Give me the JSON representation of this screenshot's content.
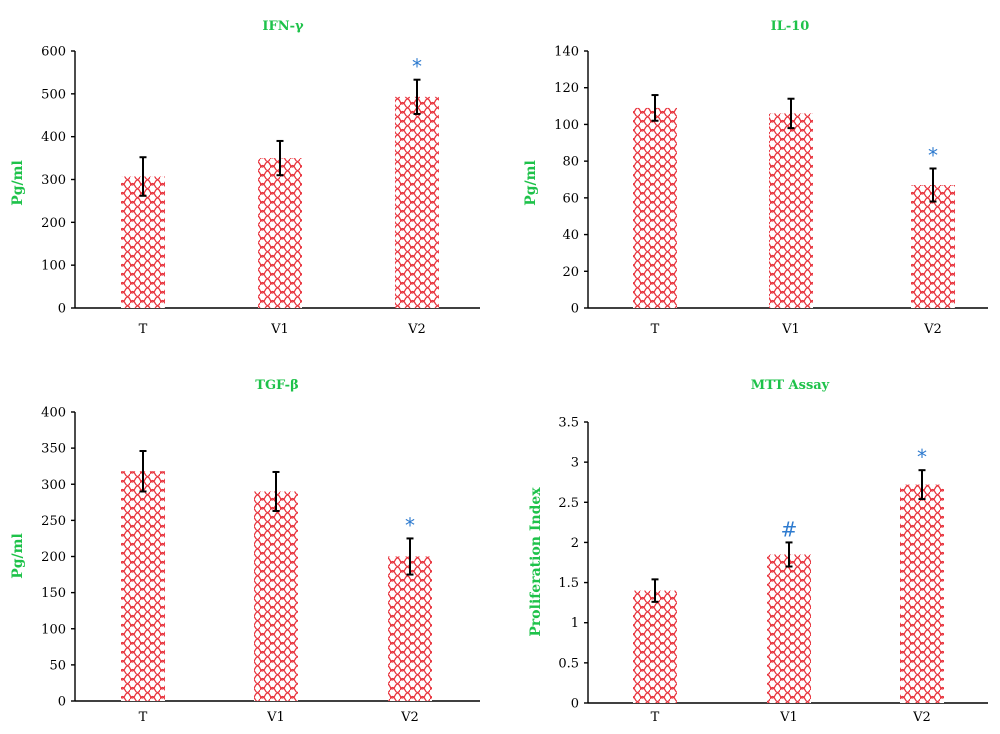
{
  "colors": {
    "title": "#1ec24a",
    "bar_pattern": "#e8323c",
    "significance": "#2e7bcf"
  },
  "chart_data": [
    {
      "type": "bar",
      "title": "IFN-γ",
      "ylabel": "Pg/ml",
      "categories": [
        "T",
        "V1",
        "V2"
      ],
      "values": [
        307,
        350,
        493
      ],
      "errors": [
        45,
        40,
        40
      ],
      "marks": [
        "",
        "",
        "*"
      ],
      "ylim": [
        0,
        600
      ],
      "yticks": [
        0,
        100,
        200,
        300,
        400,
        500,
        600
      ],
      "ytick_labels": [
        "0",
        "100",
        "200",
        "300",
        "400",
        "500",
        "600"
      ]
    },
    {
      "type": "bar",
      "title": "IL-10",
      "ylabel": "Pg/ml",
      "categories": [
        "T",
        "V1",
        "V2"
      ],
      "values": [
        109,
        106,
        67
      ],
      "errors": [
        7,
        8,
        9
      ],
      "marks": [
        "",
        "",
        "*"
      ],
      "ylim": [
        0,
        140
      ],
      "yticks": [
        0,
        20,
        40,
        60,
        80,
        100,
        120,
        140
      ],
      "ytick_labels": [
        "0",
        "20",
        "40",
        "60",
        "80",
        "100",
        "120",
        "140"
      ]
    },
    {
      "type": "bar",
      "title": "TGF-β",
      "ylabel": "Pg/ml",
      "categories": [
        "T",
        "V1",
        "V2"
      ],
      "values": [
        318,
        290,
        200
      ],
      "errors": [
        28,
        27,
        25
      ],
      "marks": [
        "",
        "",
        "*"
      ],
      "ylim": [
        0,
        400
      ],
      "yticks": [
        0,
        50,
        100,
        150,
        200,
        250,
        300,
        350,
        400
      ],
      "ytick_labels": [
        "0",
        "50",
        "100",
        "150",
        "200",
        "250",
        "300",
        "350",
        "400"
      ]
    },
    {
      "type": "bar",
      "title": "MTT Assay",
      "ylabel": "Proliferation Index",
      "categories": [
        "T",
        "V1",
        "V2"
      ],
      "values": [
        1.4,
        1.85,
        2.72
      ],
      "errors": [
        0.14,
        0.15,
        0.18
      ],
      "marks": [
        "",
        "#",
        "*"
      ],
      "ylim": [
        0,
        3.5
      ],
      "yticks": [
        0,
        0.5,
        1,
        1.5,
        2,
        2.5,
        3,
        3.5
      ],
      "ytick_labels": [
        "0",
        "0.5",
        "1",
        "1.5",
        "2",
        "2.5",
        "3",
        "3.5"
      ]
    }
  ]
}
